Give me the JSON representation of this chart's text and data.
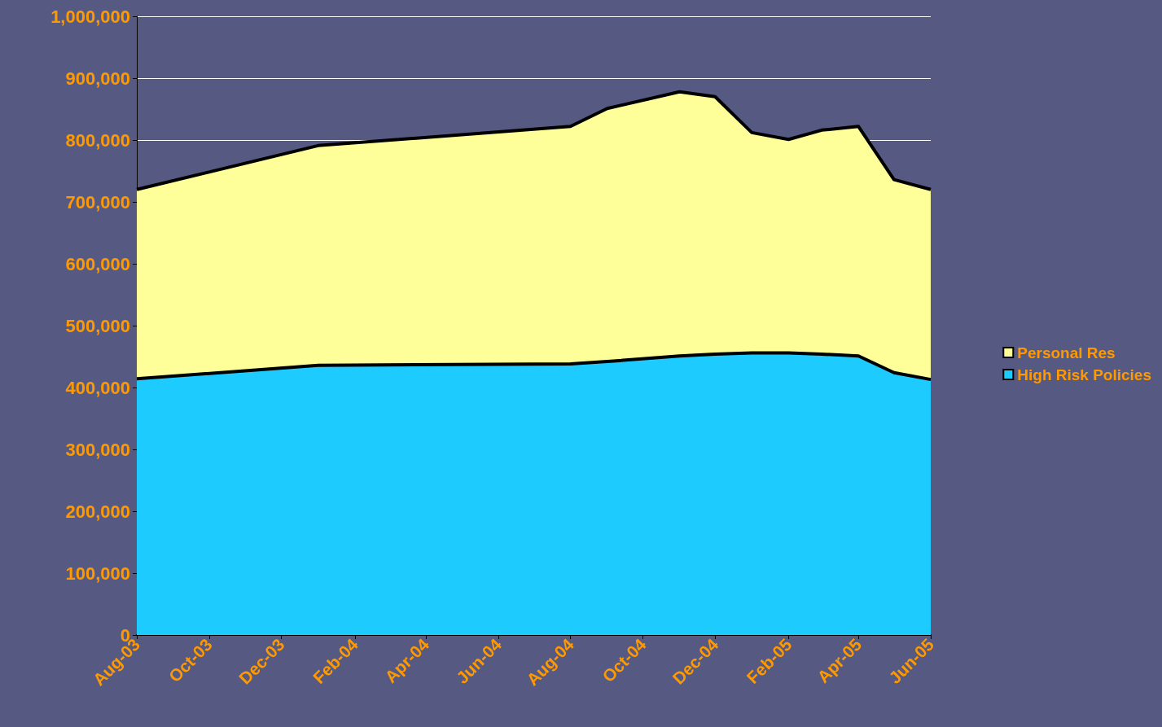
{
  "chart_data": {
    "type": "area",
    "stacked": true,
    "x": [
      "2003-08",
      "2004-01",
      "2004-08",
      "2004-09",
      "2004-11",
      "2004-12",
      "2005-01",
      "2005-02",
      "2005-03",
      "2005-04",
      "2005-05",
      "2005-06"
    ],
    "series": [
      {
        "name": "High Risk Policies",
        "color": "#1ecbff",
        "values": [
          414000,
          436000,
          438000,
          442000,
          451000,
          454000,
          456000,
          456000,
          454000,
          451000,
          424000,
          413000
        ]
      },
      {
        "name": "Personal Res",
        "color": "#ffff99",
        "values": [
          306000,
          355000,
          384000,
          409000,
          427000,
          416000,
          356000,
          345000,
          362000,
          371000,
          312000,
          307000
        ]
      }
    ],
    "xlim": [
      "2003-08",
      "2005-06"
    ],
    "xticks": [
      {
        "value": "2003-08",
        "label": "Aug-03"
      },
      {
        "value": "2003-10",
        "label": "Oct-03"
      },
      {
        "value": "2003-12",
        "label": "Dec-03"
      },
      {
        "value": "2004-02",
        "label": "Feb-04"
      },
      {
        "value": "2004-04",
        "label": "Apr-04"
      },
      {
        "value": "2004-06",
        "label": "Jun-04"
      },
      {
        "value": "2004-08",
        "label": "Aug-04"
      },
      {
        "value": "2004-10",
        "label": "Oct-04"
      },
      {
        "value": "2004-12",
        "label": "Dec-04"
      },
      {
        "value": "2005-02",
        "label": "Feb-05"
      },
      {
        "value": "2005-04",
        "label": "Apr-05"
      },
      {
        "value": "2005-06",
        "label": "Jun-05"
      }
    ],
    "ylim": [
      0,
      1000000
    ],
    "yticks": [
      0,
      {
        "value": 100000,
        "label": "100,000"
      },
      {
        "value": 200000,
        "label": "200,000"
      },
      {
        "value": 300000,
        "label": "300,000"
      },
      {
        "value": 400000,
        "label": "400,000"
      },
      {
        "value": 500000,
        "label": "500,000"
      },
      {
        "value": 600000,
        "label": "600,000"
      },
      {
        "value": 700000,
        "label": "700,000"
      },
      {
        "value": 800000,
        "label": "800,000"
      },
      {
        "value": 900000,
        "label": "900,000"
      },
      {
        "value": 1000000,
        "label": "1,000,000"
      }
    ],
    "grid": "y",
    "legend": "right",
    "line_style": "solid"
  }
}
